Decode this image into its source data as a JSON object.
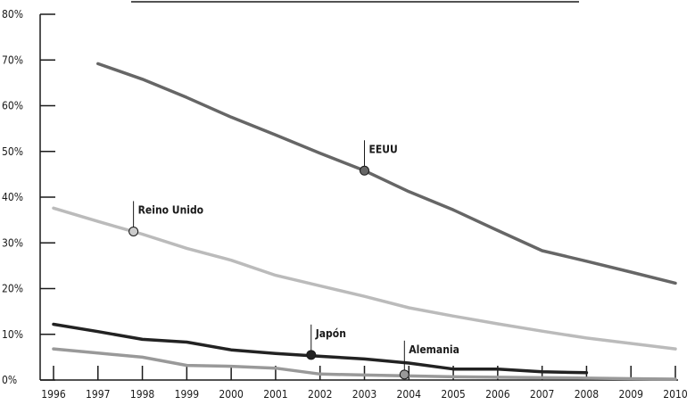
{
  "chart_data": {
    "type": "line",
    "title": "",
    "xlabel": "",
    "ylabel": "",
    "x_ticks": [
      "1996",
      "1997",
      "1998",
      "1999",
      "2000",
      "2001",
      "2002",
      "2003",
      "2004",
      "2005",
      "2006",
      "2007",
      "2008",
      "2009",
      "2010"
    ],
    "y_ticks": [
      "0%",
      "10%",
      "20%",
      "30%",
      "40%",
      "50%",
      "60%",
      "70%",
      "80%"
    ],
    "xlim": [
      1996,
      2010
    ],
    "ylim": [
      0,
      80
    ],
    "grid": false,
    "series": [
      {
        "key": "eeuu",
        "color": "#666666",
        "points": [
          [
            1997,
            69.2
          ],
          [
            1998,
            65.8
          ],
          [
            1999,
            61.8
          ],
          [
            2000,
            57.5
          ],
          [
            2001,
            53.6
          ],
          [
            2002,
            49.6
          ],
          [
            2003,
            45.8
          ],
          [
            2004,
            41.2
          ],
          [
            2005,
            37.2
          ],
          [
            2006,
            32.7
          ],
          [
            2007,
            28.3
          ],
          [
            2008,
            26.0
          ],
          [
            2009,
            23.6
          ],
          [
            2010,
            21.2
          ]
        ],
        "marker": {
          "x": 2003,
          "y": 45.8,
          "label": "EEUU"
        }
      },
      {
        "key": "reino_unido",
        "color": "#bbbbbb",
        "points": [
          [
            1996,
            37.6
          ],
          [
            1997,
            34.7
          ],
          [
            1998,
            31.9
          ],
          [
            1999,
            28.8
          ],
          [
            2000,
            26.2
          ],
          [
            2001,
            22.9
          ],
          [
            2002,
            20.6
          ],
          [
            2003,
            18.3
          ],
          [
            2004,
            15.8
          ],
          [
            2005,
            14.0
          ],
          [
            2006,
            12.3
          ],
          [
            2007,
            10.7
          ],
          [
            2008,
            9.2
          ],
          [
            2009,
            8.0
          ],
          [
            2010,
            6.8
          ]
        ],
        "marker": {
          "x": 1997.8,
          "y": 32.5,
          "label": "Reino Unido"
        }
      },
      {
        "key": "japon",
        "color": "#222222",
        "points": [
          [
            1996,
            12.2
          ],
          [
            1997,
            10.6
          ],
          [
            1998,
            8.9
          ],
          [
            1999,
            8.3
          ],
          [
            2000,
            6.6
          ],
          [
            2001,
            5.8
          ],
          [
            2002,
            5.2
          ],
          [
            2003,
            4.6
          ],
          [
            2004,
            3.7
          ],
          [
            2005,
            2.4
          ],
          [
            2006,
            2.4
          ],
          [
            2007,
            1.8
          ],
          [
            2008,
            1.6
          ]
        ],
        "marker": {
          "x": 2001.8,
          "y": 5.5,
          "label": "Japón"
        }
      },
      {
        "key": "alemania",
        "color": "#999999",
        "points": [
          [
            1996,
            6.8
          ],
          [
            1997,
            5.9
          ],
          [
            1998,
            5.0
          ],
          [
            1999,
            3.2
          ],
          [
            2000,
            3.0
          ],
          [
            2001,
            2.6
          ],
          [
            2002,
            1.3
          ],
          [
            2003,
            1.1
          ],
          [
            2004,
            0.9
          ],
          [
            2005,
            0.7
          ],
          [
            2006,
            0.6
          ],
          [
            2007,
            0.5
          ],
          [
            2008,
            0.4
          ],
          [
            2009,
            0.3
          ],
          [
            2010,
            0.2
          ]
        ],
        "marker": {
          "x": 2003.9,
          "y": 1.2,
          "label": "Alemania"
        }
      }
    ]
  }
}
